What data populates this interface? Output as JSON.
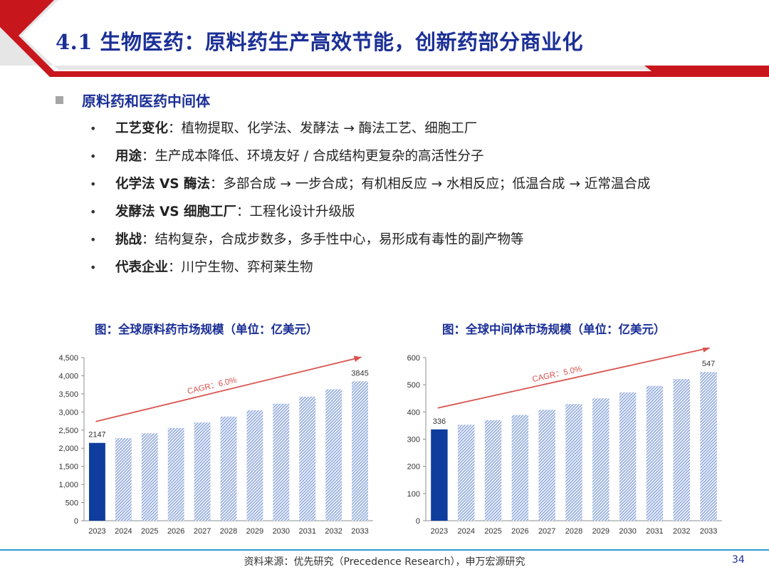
{
  "header": {
    "title": "4.1 生物医药：原料药生产高效节能，创新药部分商业化"
  },
  "section": {
    "title": "原料药和医药中间体",
    "bullet_icon": "square-bullet-icon"
  },
  "bullets": [
    {
      "key": "工艺变化",
      "text": "：植物提取、化学法、发酵法 → 酶法工艺、细胞工厂"
    },
    {
      "key": "用途",
      "text": "：生产成本降低、环境友好 / 合成结构更复杂的高活性分子"
    },
    {
      "key": "化学法 VS 酶法",
      "text": "：多部合成 → 一步合成；有机相反应 → 水相反应；低温合成 → 近常温合成"
    },
    {
      "key": "发酵法 VS 细胞工厂",
      "text": "：工程化设计升级版"
    },
    {
      "key": "挑战",
      "text": "：结构复杂，合成步数多，多手性中心，易形成有毒性的副产物等"
    },
    {
      "key": "代表企业",
      "text": "：川宁生物、弈柯莱生物"
    }
  ],
  "bullet_glyph": "•",
  "chart_data": [
    {
      "type": "bar",
      "title": "图：全球原料药市场规模（单位：亿美元）",
      "categories": [
        "2023",
        "2024",
        "2025",
        "2026",
        "2027",
        "2028",
        "2029",
        "2030",
        "2031",
        "2032",
        "2033"
      ],
      "values": [
        2147,
        2276,
        2412,
        2557,
        2711,
        2873,
        3046,
        3228,
        3422,
        3627,
        3845
      ],
      "ylim": [
        0,
        4500
      ],
      "yticks": [
        0,
        500,
        1000,
        1500,
        2000,
        2500,
        3000,
        3500,
        4000,
        4500
      ],
      "ytick_labels": [
        "0",
        "500",
        "1,000",
        "1,500",
        "2,000",
        "2,500",
        "3,000",
        "3,500",
        "4,000",
        "4,500"
      ],
      "data_labels": [
        {
          "index": 0,
          "text": "2147"
        },
        {
          "index": 10,
          "text": "3845"
        }
      ],
      "annotation": "CAGR：6.0%",
      "colors": {
        "first": "#0f3d9e",
        "rest": "#8fa8dc",
        "arrow": "#d9534f"
      },
      "grid": false
    },
    {
      "type": "bar",
      "title": "图：全球中间体市场规模（单位：亿美元）",
      "categories": [
        "2023",
        "2024",
        "2025",
        "2026",
        "2027",
        "2028",
        "2029",
        "2030",
        "2031",
        "2032",
        "2033"
      ],
      "values": [
        336,
        353,
        370,
        389,
        408,
        429,
        450,
        472,
        496,
        521,
        547
      ],
      "ylim": [
        0,
        600
      ],
      "yticks": [
        0,
        100,
        200,
        300,
        400,
        500,
        600
      ],
      "ytick_labels": [
        "0",
        "100",
        "200",
        "300",
        "400",
        "500",
        "600"
      ],
      "data_labels": [
        {
          "index": 0,
          "text": "336"
        },
        {
          "index": 10,
          "text": "547"
        }
      ],
      "annotation": "CAGR：5.0%",
      "colors": {
        "first": "#0f3d9e",
        "rest": "#8fa8dc",
        "arrow": "#d9534f"
      },
      "grid": false
    }
  ],
  "footer": {
    "source": "资料来源：优先研究（Precedence Research），申万宏源研究",
    "page_number": "34"
  },
  "colors": {
    "brand_red": "#c8161d",
    "title_blue": "#1b2f96",
    "footer_blue": "#2e9bd6"
  }
}
